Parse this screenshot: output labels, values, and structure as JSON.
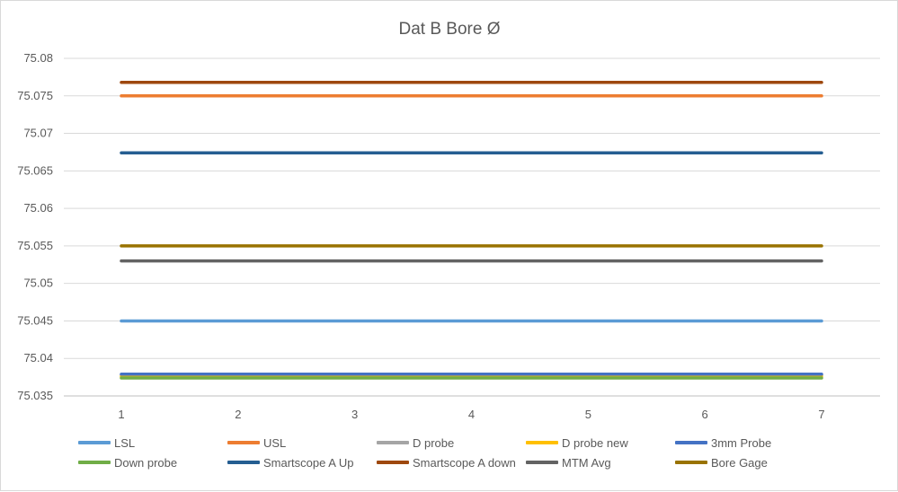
{
  "chart_data": {
    "type": "line",
    "title": "Dat B Bore Ø",
    "xlabel": "",
    "ylabel": "",
    "x": [
      1,
      2,
      3,
      4,
      5,
      6,
      7
    ],
    "ylim": [
      75.035,
      75.08
    ],
    "ytick_step": 0.005,
    "yticks": [
      "75.035",
      "75.04",
      "75.045",
      "75.05",
      "75.055",
      "75.06",
      "75.065",
      "75.07",
      "75.075",
      "75.08"
    ],
    "grid": true,
    "legend": "bottom",
    "series": [
      {
        "name": "LSL",
        "color": "#5b9bd5",
        "values": [
          75.045,
          75.045,
          75.045,
          75.045,
          75.045,
          75.045,
          75.045
        ]
      },
      {
        "name": "USL",
        "color": "#ed7d31",
        "values": [
          75.075,
          75.075,
          75.075,
          75.075,
          75.075,
          75.075,
          75.075
        ]
      },
      {
        "name": "D probe",
        "color": "#a5a5a5",
        "values": [
          75.0378,
          75.0378,
          75.0378,
          75.0378,
          75.0378,
          75.0378,
          75.0378
        ]
      },
      {
        "name": "D probe new",
        "color": "#ffc000",
        "values": [
          75.0376,
          75.0376,
          75.0376,
          75.0376,
          75.0376,
          75.0376,
          75.0376
        ]
      },
      {
        "name": "3mm Probe",
        "color": "#4472c4",
        "values": [
          75.0379,
          75.0379,
          75.0379,
          75.0379,
          75.0379,
          75.0379,
          75.0379
        ]
      },
      {
        "name": "Down probe",
        "color": "#70ad47",
        "values": [
          75.0374,
          75.0374,
          75.0374,
          75.0374,
          75.0374,
          75.0374,
          75.0374
        ]
      },
      {
        "name": "Smartscope A Up",
        "color": "#255e91",
        "values": [
          75.0674,
          75.0674,
          75.0674,
          75.0674,
          75.0674,
          75.0674,
          75.0674
        ]
      },
      {
        "name": "Smartscope A down",
        "color": "#9e480e",
        "values": [
          75.0768,
          75.0768,
          75.0768,
          75.0768,
          75.0768,
          75.0768,
          75.0768
        ]
      },
      {
        "name": "MTM Avg",
        "color": "#636363",
        "values": [
          75.053,
          75.053,
          75.053,
          75.053,
          75.053,
          75.053,
          75.053
        ]
      },
      {
        "name": "Bore Gage",
        "color": "#997300",
        "values": [
          75.055,
          75.055,
          75.055,
          75.055,
          75.055,
          75.055,
          75.055
        ]
      }
    ]
  }
}
